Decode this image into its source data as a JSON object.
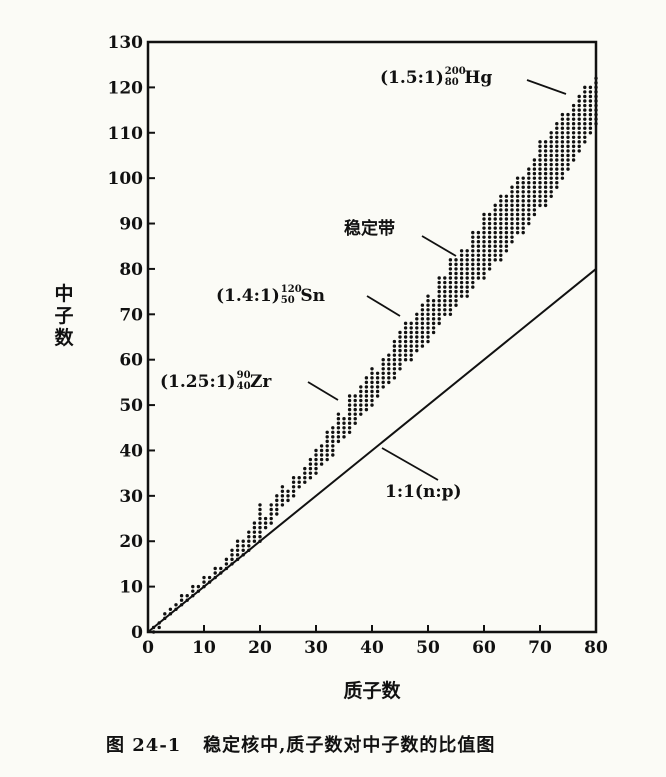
{
  "chart_data": {
    "type": "scatter",
    "xlabel": "质子数",
    "ylabel": "中子数",
    "xlim": [
      0,
      80
    ],
    "ylim": [
      0,
      130
    ],
    "x_ticks": [
      "0",
      "10",
      "20",
      "30",
      "40",
      "50",
      "60",
      "70",
      "80"
    ],
    "y_ticks": [
      "0",
      "10",
      "20",
      "30",
      "40",
      "50",
      "60",
      "70",
      "80",
      "90",
      "100",
      "110",
      "120",
      "130"
    ],
    "grid": false,
    "reference_line": {
      "label": "1:1(n:p)",
      "points": [
        [
          0,
          0
        ],
        [
          80,
          80
        ]
      ]
    },
    "band_label": "稳定带",
    "annotations": [
      {
        "prefix": "(1.25:1)",
        "mass": "90",
        "atomic": "40",
        "symbol": "Zr",
        "x": 40,
        "y": 50
      },
      {
        "prefix": "(1.4:1)",
        "mass": "120",
        "atomic": "50",
        "symbol": "Sn",
        "x": 50,
        "y": 70
      },
      {
        "prefix": "(1.5:1)",
        "mass": "200",
        "atomic": "80",
        "symbol": "Hg",
        "x": 80,
        "y": 120
      }
    ],
    "stable_band": {
      "protons": [
        1,
        2,
        3,
        4,
        5,
        6,
        7,
        8,
        9,
        10,
        11,
        12,
        13,
        14,
        15,
        16,
        17,
        18,
        19,
        20,
        21,
        22,
        23,
        24,
        25,
        26,
        27,
        28,
        29,
        30,
        31,
        32,
        33,
        34,
        35,
        36,
        37,
        38,
        39,
        40,
        41,
        42,
        43,
        44,
        45,
        46,
        47,
        48,
        49,
        50,
        51,
        52,
        53,
        54,
        55,
        56,
        57,
        58,
        59,
        60,
        61,
        62,
        63,
        64,
        65,
        66,
        67,
        68,
        69,
        70,
        71,
        72,
        73,
        74,
        75,
        76,
        77,
        78,
        79,
        80
      ],
      "neutron_min": [
        0,
        1,
        3,
        4,
        5,
        6,
        7,
        8,
        9,
        10,
        11,
        12,
        13,
        14,
        15,
        16,
        17,
        18,
        20,
        20,
        23,
        24,
        26,
        28,
        29,
        30,
        32,
        33,
        34,
        35,
        37,
        38,
        39,
        42,
        43,
        44,
        46,
        48,
        49,
        50,
        52,
        54,
        55,
        56,
        58,
        60,
        60,
        62,
        63,
        64,
        66,
        68,
        70,
        70,
        72,
        74,
        74,
        76,
        78,
        78,
        80,
        82,
        82,
        84,
        86,
        88,
        88,
        90,
        92,
        94,
        94,
        96,
        98,
        100,
        102,
        104,
        106,
        108,
        110,
        112
      ],
      "neutron_max": [
        1,
        2,
        4,
        5,
        6,
        8,
        8,
        10,
        10,
        12,
        12,
        14,
        14,
        16,
        18,
        20,
        20,
        22,
        24,
        28,
        25,
        28,
        30,
        32,
        31,
        34,
        34,
        36,
        38,
        40,
        41,
        44,
        45,
        48,
        47,
        52,
        52,
        54,
        56,
        58,
        57,
        60,
        61,
        64,
        66,
        68,
        68,
        70,
        72,
        74,
        73,
        78,
        78,
        82,
        82,
        84,
        84,
        88,
        88,
        92,
        92,
        94,
        96,
        96,
        98,
        100,
        100,
        102,
        104,
        108,
        108,
        110,
        112,
        114,
        114,
        116,
        118,
        120,
        120,
        122
      ]
    }
  },
  "figure_caption": "图 24-1   稳定核中,质子数对中子数的比值图"
}
